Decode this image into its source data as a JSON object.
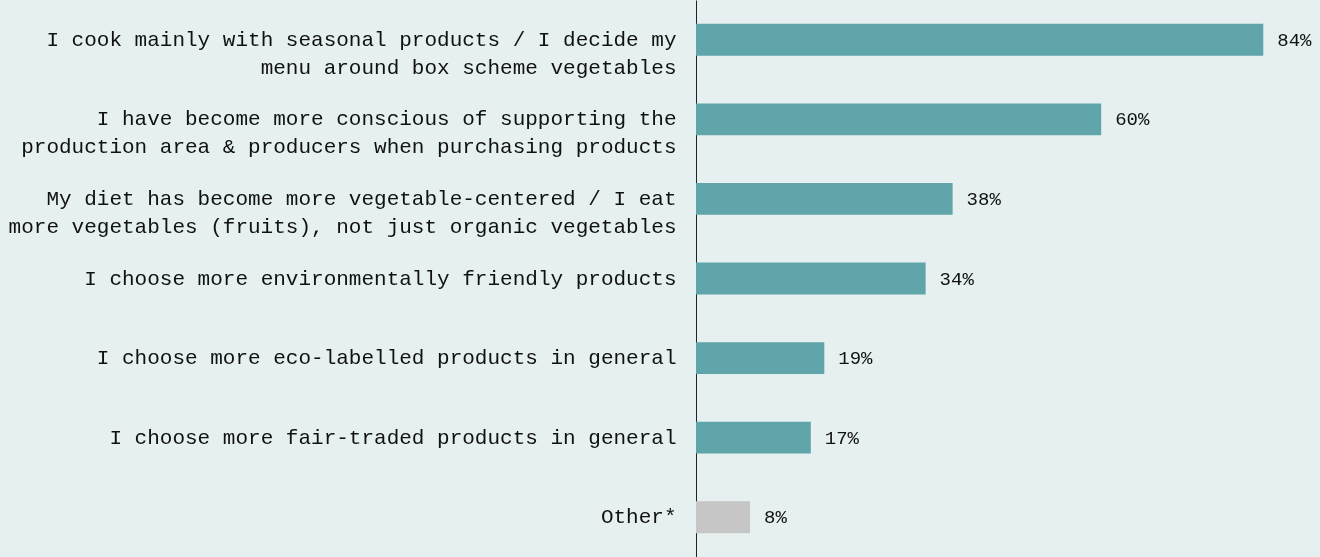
{
  "chart_data": {
    "type": "bar",
    "orientation": "horizontal",
    "categories": [
      "I cook mainly with seasonal products / I decide my\nmenu around box scheme vegetables",
      "I have become more conscious of supporting the\nproduction area & producers when purchasing products",
      "My diet has become more vegetable-centered / I eat\nmore vegetables (fruits), not just organic vegetables",
      "I choose more environmentally friendly products",
      "I choose more eco-labelled products in general",
      "I choose more fair-traded products in general",
      "Other*"
    ],
    "values": [
      84,
      60,
      38,
      34,
      19,
      17,
      8
    ],
    "colors": [
      "#5fa5aa",
      "#5fa5aa",
      "#5fa5aa",
      "#5fa5aa",
      "#5fa5aa",
      "#5fa5aa",
      "#c6c6c6"
    ],
    "value_labels": [
      "84%",
      "60%",
      "38%",
      "34%",
      "19%",
      "17%",
      "8%"
    ],
    "grid": false
  }
}
